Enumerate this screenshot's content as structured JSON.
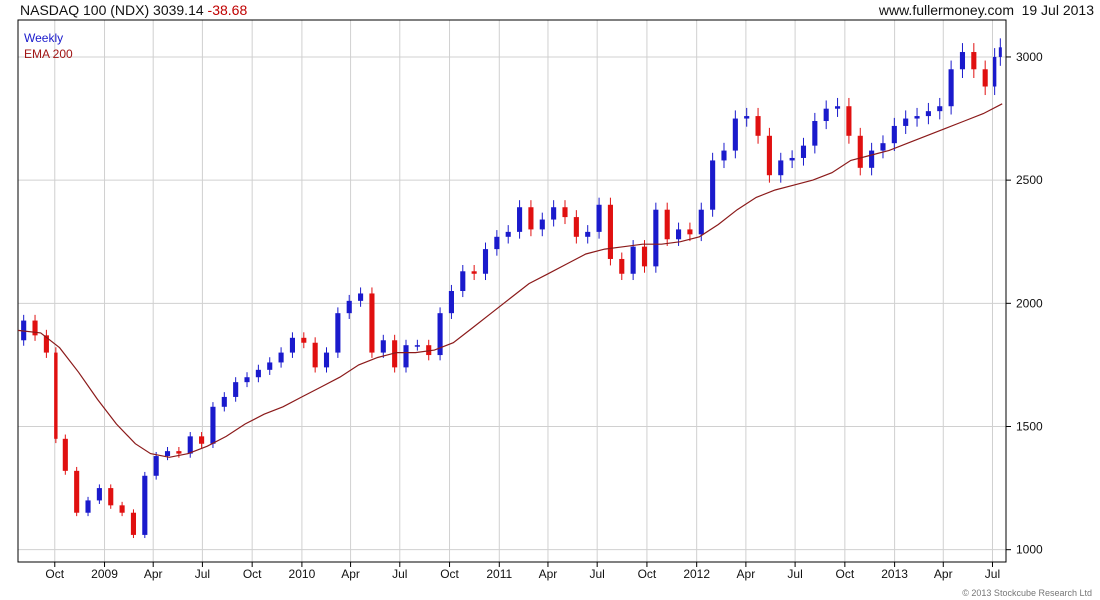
{
  "header": {
    "title": "NASDAQ 100 (NDX) 3039.14",
    "change": "-38.68",
    "site": "www.fullermoney.com",
    "date": "19 Jul 2013"
  },
  "legend": {
    "series1": "Weekly",
    "series2": "EMA 200"
  },
  "credit": "© 2013 Stockcube Research Ltd",
  "colors": {
    "up": "#1a1acc",
    "down": "#e01010",
    "ema": "#8b1a1a",
    "grid": "#d0d0d0",
    "frame": "#000000"
  },
  "chart_data": {
    "type": "line",
    "title": "NASDAQ 100 (NDX) 3039.14 -38.68",
    "y_axis_position": "right",
    "ylim": [
      950,
      3150
    ],
    "yticks": [
      1000,
      1500,
      2000,
      2500,
      3000
    ],
    "grid": true,
    "legend_placement": "top-left",
    "xlim": [
      "2008-07-25",
      "2013-07-26"
    ],
    "xticks": [
      {
        "label": "Oct",
        "date": "2008-10-01"
      },
      {
        "label": "2009",
        "date": "2009-01-01"
      },
      {
        "label": "Apr",
        "date": "2009-04-01"
      },
      {
        "label": "Jul",
        "date": "2009-07-01"
      },
      {
        "label": "Oct",
        "date": "2009-10-01"
      },
      {
        "label": "2010",
        "date": "2010-01-01"
      },
      {
        "label": "Apr",
        "date": "2010-04-01"
      },
      {
        "label": "Jul",
        "date": "2010-07-01"
      },
      {
        "label": "Oct",
        "date": "2010-10-01"
      },
      {
        "label": "2011",
        "date": "2011-01-01"
      },
      {
        "label": "Apr",
        "date": "2011-04-01"
      },
      {
        "label": "Jul",
        "date": "2011-07-01"
      },
      {
        "label": "Oct",
        "date": "2011-10-01"
      },
      {
        "label": "2012",
        "date": "2012-01-01"
      },
      {
        "label": "Apr",
        "date": "2012-04-01"
      },
      {
        "label": "Jul",
        "date": "2012-07-01"
      },
      {
        "label": "Oct",
        "date": "2012-10-01"
      },
      {
        "label": "2013",
        "date": "2013-01-01"
      },
      {
        "label": "Apr",
        "date": "2013-04-01"
      },
      {
        "label": "Jul",
        "date": "2013-07-01"
      }
    ],
    "series": [
      {
        "name": "Weekly",
        "style": "candlestick",
        "points": [
          [
            "2008-07-25",
            1850
          ],
          [
            "2008-08-15",
            1930
          ],
          [
            "2008-09-05",
            1870
          ],
          [
            "2008-09-26",
            1800
          ],
          [
            "2008-10-10",
            1450
          ],
          [
            "2008-10-31",
            1320
          ],
          [
            "2008-11-21",
            1150
          ],
          [
            "2008-12-12",
            1200
          ],
          [
            "2009-01-02",
            1250
          ],
          [
            "2009-01-23",
            1180
          ],
          [
            "2009-02-13",
            1150
          ],
          [
            "2009-03-06",
            1060
          ],
          [
            "2009-03-27",
            1300
          ],
          [
            "2009-04-17",
            1380
          ],
          [
            "2009-05-08",
            1400
          ],
          [
            "2009-05-29",
            1390
          ],
          [
            "2009-06-19",
            1460
          ],
          [
            "2009-07-10",
            1430
          ],
          [
            "2009-07-31",
            1580
          ],
          [
            "2009-08-21",
            1620
          ],
          [
            "2009-09-11",
            1680
          ],
          [
            "2009-10-02",
            1700
          ],
          [
            "2009-10-23",
            1730
          ],
          [
            "2009-11-13",
            1760
          ],
          [
            "2009-12-04",
            1800
          ],
          [
            "2009-12-25",
            1860
          ],
          [
            "2010-01-15",
            1840
          ],
          [
            "2010-02-05",
            1740
          ],
          [
            "2010-02-26",
            1800
          ],
          [
            "2010-03-19",
            1960
          ],
          [
            "2010-04-09",
            2010
          ],
          [
            "2010-04-30",
            2040
          ],
          [
            "2010-05-21",
            1800
          ],
          [
            "2010-06-11",
            1850
          ],
          [
            "2010-07-02",
            1740
          ],
          [
            "2010-07-23",
            1830
          ],
          [
            "2010-08-13",
            1830
          ],
          [
            "2010-09-03",
            1790
          ],
          [
            "2010-09-24",
            1960
          ],
          [
            "2010-10-15",
            2050
          ],
          [
            "2010-11-05",
            2130
          ],
          [
            "2010-11-26",
            2120
          ],
          [
            "2010-12-17",
            2220
          ],
          [
            "2011-01-07",
            2270
          ],
          [
            "2011-01-28",
            2290
          ],
          [
            "2011-02-18",
            2390
          ],
          [
            "2011-03-11",
            2300
          ],
          [
            "2011-04-01",
            2340
          ],
          [
            "2011-04-22",
            2390
          ],
          [
            "2011-05-13",
            2350
          ],
          [
            "2011-06-03",
            2270
          ],
          [
            "2011-06-24",
            2290
          ],
          [
            "2011-07-15",
            2400
          ],
          [
            "2011-08-05",
            2180
          ],
          [
            "2011-08-26",
            2120
          ],
          [
            "2011-09-16",
            2230
          ],
          [
            "2011-10-07",
            2150
          ],
          [
            "2011-10-28",
            2380
          ],
          [
            "2011-11-18",
            2260
          ],
          [
            "2011-12-09",
            2300
          ],
          [
            "2011-12-30",
            2280
          ],
          [
            "2012-01-20",
            2380
          ],
          [
            "2012-02-10",
            2580
          ],
          [
            "2012-03-02",
            2620
          ],
          [
            "2012-03-23",
            2750
          ],
          [
            "2012-04-13",
            2760
          ],
          [
            "2012-05-04",
            2680
          ],
          [
            "2012-05-25",
            2520
          ],
          [
            "2012-06-15",
            2580
          ],
          [
            "2012-07-06",
            2590
          ],
          [
            "2012-07-27",
            2640
          ],
          [
            "2012-08-17",
            2740
          ],
          [
            "2012-09-07",
            2790
          ],
          [
            "2012-09-28",
            2800
          ],
          [
            "2012-10-19",
            2680
          ],
          [
            "2012-11-09",
            2550
          ],
          [
            "2012-11-30",
            2620
          ],
          [
            "2012-12-21",
            2650
          ],
          [
            "2013-01-11",
            2720
          ],
          [
            "2013-02-01",
            2750
          ],
          [
            "2013-02-22",
            2760
          ],
          [
            "2013-03-15",
            2780
          ],
          [
            "2013-04-05",
            2800
          ],
          [
            "2013-04-26",
            2950
          ],
          [
            "2013-05-17",
            3020
          ],
          [
            "2013-06-07",
            2950
          ],
          [
            "2013-06-28",
            2880
          ],
          [
            "2013-07-12",
            3000
          ],
          [
            "2013-07-19",
            3039.14
          ]
        ]
      },
      {
        "name": "EMA 200",
        "style": "line",
        "points": [
          [
            "2008-07-25",
            1890
          ],
          [
            "2008-09-05",
            1880
          ],
          [
            "2008-10-10",
            1820
          ],
          [
            "2008-11-14",
            1720
          ],
          [
            "2008-12-19",
            1610
          ],
          [
            "2009-01-23",
            1510
          ],
          [
            "2009-02-27",
            1430
          ],
          [
            "2009-03-27",
            1390
          ],
          [
            "2009-05-01",
            1375
          ],
          [
            "2009-06-05",
            1390
          ],
          [
            "2009-07-10",
            1420
          ],
          [
            "2009-08-14",
            1460
          ],
          [
            "2009-09-18",
            1510
          ],
          [
            "2009-10-23",
            1550
          ],
          [
            "2009-11-27",
            1580
          ],
          [
            "2010-01-01",
            1620
          ],
          [
            "2010-02-05",
            1660
          ],
          [
            "2010-03-12",
            1700
          ],
          [
            "2010-04-16",
            1750
          ],
          [
            "2010-05-21",
            1780
          ],
          [
            "2010-06-25",
            1800
          ],
          [
            "2010-07-30",
            1800
          ],
          [
            "2010-09-03",
            1810
          ],
          [
            "2010-10-08",
            1840
          ],
          [
            "2010-11-12",
            1900
          ],
          [
            "2010-12-17",
            1960
          ],
          [
            "2011-01-21",
            2020
          ],
          [
            "2011-02-25",
            2080
          ],
          [
            "2011-04-01",
            2120
          ],
          [
            "2011-05-06",
            2160
          ],
          [
            "2011-06-10",
            2200
          ],
          [
            "2011-07-15",
            2220
          ],
          [
            "2011-08-19",
            2230
          ],
          [
            "2011-09-23",
            2240
          ],
          [
            "2011-10-28",
            2240
          ],
          [
            "2011-12-02",
            2250
          ],
          [
            "2012-01-06",
            2270
          ],
          [
            "2012-02-10",
            2320
          ],
          [
            "2012-03-16",
            2380
          ],
          [
            "2012-04-20",
            2430
          ],
          [
            "2012-05-25",
            2460
          ],
          [
            "2012-06-29",
            2480
          ],
          [
            "2012-08-03",
            2500
          ],
          [
            "2012-09-07",
            2530
          ],
          [
            "2012-10-12",
            2580
          ],
          [
            "2012-11-16",
            2600
          ],
          [
            "2012-12-21",
            2620
          ],
          [
            "2013-01-25",
            2650
          ],
          [
            "2013-03-01",
            2680
          ],
          [
            "2013-04-05",
            2710
          ],
          [
            "2013-05-10",
            2740
          ],
          [
            "2013-06-14",
            2770
          ],
          [
            "2013-07-19",
            2810
          ]
        ]
      }
    ]
  }
}
